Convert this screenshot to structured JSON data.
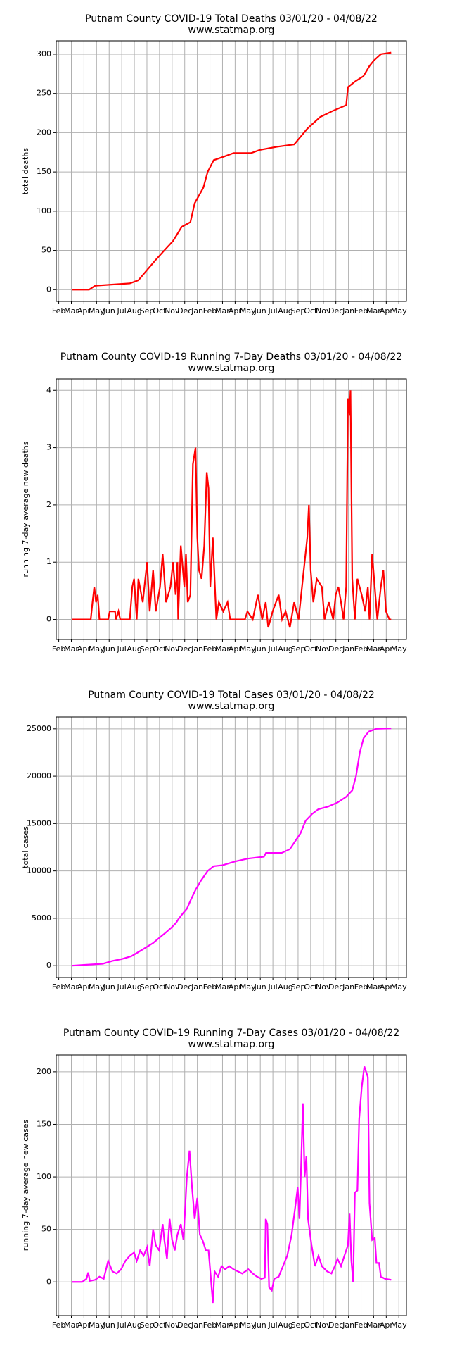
{
  "chart_data": [
    {
      "type": "line",
      "title": "Putnam County COVID-19 Total Deaths 03/01/20 - 04/08/22",
      "subtitle": "www.statmap.org",
      "ylabel": "total deaths",
      "color": "#ff0000",
      "grid": true,
      "xlim": [
        -0.2,
        27.6
      ],
      "xticks": [
        {
          "value": 0,
          "label": "Feb"
        },
        {
          "value": 1,
          "label": "Mar"
        },
        {
          "value": 2,
          "label": "Apr"
        },
        {
          "value": 3,
          "label": "May"
        },
        {
          "value": 4,
          "label": "Jun"
        },
        {
          "value": 5,
          "label": "Jul"
        },
        {
          "value": 6,
          "label": "Aug"
        },
        {
          "value": 7,
          "label": "Sep"
        },
        {
          "value": 8,
          "label": "Oct"
        },
        {
          "value": 9,
          "label": "Nov"
        },
        {
          "value": 10,
          "label": "Dec"
        },
        {
          "value": 11,
          "label": "Jan"
        },
        {
          "value": 12,
          "label": "Feb"
        },
        {
          "value": 13,
          "label": "Mar"
        },
        {
          "value": 14,
          "label": "Apr"
        },
        {
          "value": 15,
          "label": "May"
        },
        {
          "value": 16,
          "label": "Jun"
        },
        {
          "value": 17,
          "label": "Jul"
        },
        {
          "value": 18,
          "label": "Aug"
        },
        {
          "value": 19,
          "label": "Sep"
        },
        {
          "value": 20,
          "label": "Oct"
        },
        {
          "value": 21,
          "label": "Nov"
        },
        {
          "value": 22,
          "label": "Dec"
        },
        {
          "value": 23,
          "label": "Jan"
        },
        {
          "value": 24,
          "label": "Feb"
        },
        {
          "value": 25,
          "label": "Mar"
        },
        {
          "value": 26,
          "label": "Apr"
        },
        {
          "value": 27,
          "label": "May"
        }
      ],
      "ylim": [
        -15,
        317
      ],
      "yticks": [
        0,
        50,
        100,
        150,
        200,
        250,
        300
      ],
      "x": [
        1.03,
        2.41,
        2.89,
        5.64,
        6.32,
        7.01,
        7.7,
        8.38,
        9.07,
        9.76,
        10.45,
        10.79,
        11.48,
        11.82,
        12.3,
        13.2,
        13.88,
        15.26,
        15.95,
        17.32,
        18.69,
        19.73,
        20.76,
        21.79,
        22.82,
        22.96,
        23.51,
        24.19,
        24.67,
        25.02,
        25.57,
        26.39
      ],
      "values": [
        0,
        0,
        5,
        8,
        12,
        25,
        38,
        50,
        62,
        80,
        86,
        110,
        130,
        150,
        165,
        170,
        174,
        174,
        178,
        182,
        185,
        205,
        220,
        228,
        235,
        258,
        265,
        272,
        285,
        292,
        300,
        302
      ]
    },
    {
      "type": "line",
      "title": "Putnam County COVID-19 Running 7-Day Deaths 03/01/20 - 04/08/22",
      "subtitle": "www.statmap.org",
      "ylabel": "running 7-day average new deaths",
      "color": "#ff0000",
      "grid": true,
      "xlim": [
        -0.2,
        27.6
      ],
      "xticks": [
        {
          "value": 0,
          "label": "Feb"
        },
        {
          "value": 1,
          "label": "Mar"
        },
        {
          "value": 2,
          "label": "Apr"
        },
        {
          "value": 3,
          "label": "May"
        },
        {
          "value": 4,
          "label": "Jun"
        },
        {
          "value": 5,
          "label": "Jul"
        },
        {
          "value": 6,
          "label": "Aug"
        },
        {
          "value": 7,
          "label": "Sep"
        },
        {
          "value": 8,
          "label": "Oct"
        },
        {
          "value": 9,
          "label": "Nov"
        },
        {
          "value": 10,
          "label": "Dec"
        },
        {
          "value": 11,
          "label": "Jan"
        },
        {
          "value": 12,
          "label": "Feb"
        },
        {
          "value": 13,
          "label": "Mar"
        },
        {
          "value": 14,
          "label": "Apr"
        },
        {
          "value": 15,
          "label": "May"
        },
        {
          "value": 16,
          "label": "Jun"
        },
        {
          "value": 17,
          "label": "Jul"
        },
        {
          "value": 18,
          "label": "Aug"
        },
        {
          "value": 19,
          "label": "Sep"
        },
        {
          "value": 20,
          "label": "Oct"
        },
        {
          "value": 21,
          "label": "Nov"
        },
        {
          "value": 22,
          "label": "Dec"
        },
        {
          "value": 23,
          "label": "Jan"
        },
        {
          "value": 24,
          "label": "Feb"
        },
        {
          "value": 25,
          "label": "Mar"
        },
        {
          "value": 26,
          "label": "Apr"
        },
        {
          "value": 27,
          "label": "May"
        }
      ],
      "ylim": [
        -0.35,
        4.2
      ],
      "yticks": [
        0,
        1,
        2,
        3,
        4
      ],
      "x": [
        1.03,
        2.54,
        2.68,
        2.82,
        2.96,
        3.09,
        3.23,
        3.92,
        4.05,
        4.47,
        4.54,
        4.74,
        4.88,
        5.64,
        5.84,
        5.98,
        6.19,
        6.32,
        6.67,
        7.01,
        7.22,
        7.49,
        7.7,
        8.04,
        8.25,
        8.52,
        8.87,
        9.07,
        9.28,
        9.42,
        9.48,
        9.69,
        9.97,
        10.1,
        10.24,
        10.45,
        10.65,
        10.86,
        11.0,
        11.13,
        11.34,
        11.55,
        11.75,
        11.89,
        12.03,
        12.23,
        12.51,
        12.71,
        13.06,
        13.4,
        13.61,
        14.78,
        14.98,
        15.4,
        15.81,
        16.15,
        16.43,
        16.63,
        16.98,
        17.46,
        17.73,
        18.01,
        18.35,
        18.69,
        19.04,
        19.38,
        19.73,
        19.86,
        20.0,
        20.21,
        20.48,
        20.89,
        21.1,
        21.44,
        21.79,
        21.99,
        22.2,
        22.41,
        22.61,
        22.82,
        22.96,
        23.09,
        23.16,
        23.3,
        23.51,
        23.71,
        24.05,
        24.33,
        24.54,
        24.67,
        24.88,
        25.29,
        25.57,
        25.77,
        25.98,
        26.25,
        26.39
      ],
      "values": [
        0,
        0,
        0.3,
        0.57,
        0.3,
        0.43,
        0,
        0,
        0.14,
        0.14,
        0,
        0.14,
        0,
        0,
        0.57,
        0.71,
        0,
        0.71,
        0.3,
        1.0,
        0.14,
        0.86,
        0.14,
        0.57,
        1.14,
        0.3,
        0.57,
        1.0,
        0.43,
        1.0,
        0,
        1.29,
        0.57,
        1.14,
        0.3,
        0.43,
        2.71,
        3.0,
        1.43,
        0.86,
        0.71,
        1.29,
        2.57,
        2.29,
        0.57,
        1.43,
        0,
        0.3,
        0.14,
        0.3,
        0,
        0,
        0.14,
        0,
        0.43,
        0,
        0.3,
        -0.14,
        0.14,
        0.43,
        0,
        0.14,
        -0.14,
        0.3,
        0,
        0.71,
        1.43,
        2.0,
        0.86,
        0.3,
        0.71,
        0.57,
        0,
        0.3,
        0,
        0.43,
        0.57,
        0.3,
        0,
        0.57,
        3.86,
        3.57,
        4.0,
        0.71,
        0,
        0.71,
        0.43,
        0.14,
        0.57,
        0,
        1.14,
        0,
        0.57,
        0.86,
        0.14,
        0,
        0
      ]
    },
    {
      "type": "line",
      "title": "Putnam County COVID-19 Total Cases 03/01/20 - 04/08/22",
      "subtitle": "www.statmap.org",
      "ylabel": "total cases",
      "color": "#ff00ff",
      "grid": true,
      "xlim": [
        -0.2,
        27.6
      ],
      "xticks": [
        {
          "value": 0,
          "label": "Feb"
        },
        {
          "value": 1,
          "label": "Mar"
        },
        {
          "value": 2,
          "label": "Apr"
        },
        {
          "value": 3,
          "label": "May"
        },
        {
          "value": 4,
          "label": "Jun"
        },
        {
          "value": 5,
          "label": "Jul"
        },
        {
          "value": 6,
          "label": "Aug"
        },
        {
          "value": 7,
          "label": "Sep"
        },
        {
          "value": 8,
          "label": "Oct"
        },
        {
          "value": 9,
          "label": "Nov"
        },
        {
          "value": 10,
          "label": "Dec"
        },
        {
          "value": 11,
          "label": "Jan"
        },
        {
          "value": 12,
          "label": "Feb"
        },
        {
          "value": 13,
          "label": "Mar"
        },
        {
          "value": 14,
          "label": "Apr"
        },
        {
          "value": 15,
          "label": "May"
        },
        {
          "value": 16,
          "label": "Jun"
        },
        {
          "value": 17,
          "label": "Jul"
        },
        {
          "value": 18,
          "label": "Aug"
        },
        {
          "value": 19,
          "label": "Sep"
        },
        {
          "value": 20,
          "label": "Oct"
        },
        {
          "value": 21,
          "label": "Nov"
        },
        {
          "value": 22,
          "label": "Dec"
        },
        {
          "value": 23,
          "label": "Jan"
        },
        {
          "value": 24,
          "label": "Feb"
        },
        {
          "value": 25,
          "label": "Mar"
        },
        {
          "value": 26,
          "label": "Apr"
        },
        {
          "value": 27,
          "label": "May"
        }
      ],
      "ylim": [
        -1250,
        26250
      ],
      "yticks": [
        0,
        5000,
        10000,
        15000,
        20000,
        25000
      ],
      "x": [
        1.03,
        2.2,
        3.5,
        4.26,
        5.0,
        5.77,
        6.4,
        7.01,
        7.5,
        8.04,
        8.5,
        8.93,
        9.3,
        9.55,
        9.9,
        10.17,
        10.5,
        10.86,
        11.3,
        11.82,
        12.3,
        13.0,
        14.0,
        15.0,
        16.29,
        16.45,
        17.7,
        18.35,
        18.8,
        19.2,
        19.6,
        20.1,
        20.6,
        21.4,
        22.1,
        22.8,
        23.3,
        23.6,
        23.9,
        24.2,
        24.6,
        25.2,
        26.39
      ],
      "values": [
        0,
        100,
        200,
        500,
        700,
        1000,
        1500,
        2000,
        2400,
        3000,
        3500,
        4000,
        4500,
        5000,
        5600,
        6000,
        7000,
        8000,
        9000,
        10000,
        10500,
        10600,
        11000,
        11300,
        11500,
        11900,
        11900,
        12300,
        13200,
        14000,
        15300,
        16000,
        16500,
        16800,
        17200,
        17800,
        18500,
        20000,
        22500,
        24000,
        24700,
        25000,
        25050
      ]
    },
    {
      "type": "line",
      "title": "Putnam County COVID-19 Running 7-Day Cases 03/01/20 - 04/08/22",
      "subtitle": "www.statmap.org",
      "ylabel": "running 7-day average new cases",
      "color": "#ff00ff",
      "grid": true,
      "xlim": [
        -0.2,
        27.6
      ],
      "xticks": [
        {
          "value": 0,
          "label": "Feb"
        },
        {
          "value": 1,
          "label": "Mar"
        },
        {
          "value": 2,
          "label": "Apr"
        },
        {
          "value": 3,
          "label": "May"
        },
        {
          "value": 4,
          "label": "Jun"
        },
        {
          "value": 5,
          "label": "Jul"
        },
        {
          "value": 6,
          "label": "Aug"
        },
        {
          "value": 7,
          "label": "Sep"
        },
        {
          "value": 8,
          "label": "Oct"
        },
        {
          "value": 9,
          "label": "Nov"
        },
        {
          "value": 10,
          "label": "Dec"
        },
        {
          "value": 11,
          "label": "Jan"
        },
        {
          "value": 12,
          "label": "Feb"
        },
        {
          "value": 13,
          "label": "Mar"
        },
        {
          "value": 14,
          "label": "Apr"
        },
        {
          "value": 15,
          "label": "May"
        },
        {
          "value": 16,
          "label": "Jun"
        },
        {
          "value": 17,
          "label": "Jul"
        },
        {
          "value": 18,
          "label": "Aug"
        },
        {
          "value": 19,
          "label": "Sep"
        },
        {
          "value": 20,
          "label": "Oct"
        },
        {
          "value": 21,
          "label": "Nov"
        },
        {
          "value": 22,
          "label": "Dec"
        },
        {
          "value": 23,
          "label": "Jan"
        },
        {
          "value": 24,
          "label": "Feb"
        },
        {
          "value": 25,
          "label": "Mar"
        },
        {
          "value": 26,
          "label": "Apr"
        },
        {
          "value": 27,
          "label": "May"
        }
      ],
      "ylim": [
        -32,
        216
      ],
      "yticks": [
        0,
        50,
        100,
        150,
        200
      ],
      "x": [
        1.03,
        1.86,
        2.2,
        2.34,
        2.47,
        2.89,
        3.23,
        3.57,
        3.92,
        4.26,
        4.6,
        4.95,
        5.29,
        5.64,
        5.98,
        6.19,
        6.46,
        6.74,
        7.01,
        7.22,
        7.49,
        7.7,
        7.97,
        8.25,
        8.38,
        8.59,
        8.8,
        9.0,
        9.21,
        9.42,
        9.69,
        9.9,
        10.17,
        10.38,
        10.58,
        10.79,
        11.0,
        11.2,
        11.41,
        11.68,
        11.89,
        12.1,
        12.23,
        12.37,
        12.65,
        12.92,
        13.2,
        13.54,
        13.88,
        14.23,
        14.57,
        15.05,
        15.4,
        15.74,
        16.08,
        16.36,
        16.43,
        16.56,
        16.7,
        16.91,
        17.11,
        17.46,
        17.8,
        18.14,
        18.49,
        18.76,
        18.97,
        19.11,
        19.24,
        19.38,
        19.52,
        19.66,
        19.79,
        20.07,
        20.34,
        20.62,
        20.89,
        21.31,
        21.65,
        21.92,
        22.13,
        22.41,
        22.68,
        22.96,
        23.09,
        23.23,
        23.37,
        23.51,
        23.71,
        23.85,
        24.05,
        24.26,
        24.4,
        24.54,
        24.67,
        24.88,
        25.09,
        25.22,
        25.43,
        25.57,
        25.91,
        26.39
      ],
      "values": [
        0,
        0,
        3,
        9,
        1,
        2,
        5,
        3,
        20,
        10,
        8,
        12,
        20,
        25,
        28,
        20,
        30,
        25,
        33,
        15,
        50,
        35,
        30,
        55,
        40,
        22,
        60,
        40,
        30,
        45,
        55,
        40,
        100,
        125,
        90,
        60,
        80,
        45,
        40,
        30,
        30,
        0,
        -20,
        10,
        5,
        15,
        12,
        15,
        12,
        10,
        8,
        12,
        8,
        5,
        3,
        4,
        60,
        55,
        -5,
        -8,
        3,
        5,
        15,
        25,
        45,
        70,
        90,
        60,
        110,
        170,
        100,
        120,
        60,
        35,
        15,
        25,
        15,
        10,
        8,
        15,
        22,
        15,
        25,
        35,
        65,
        20,
        0,
        85,
        87,
        155,
        185,
        205,
        200,
        195,
        75,
        40,
        42,
        18,
        18,
        5,
        3,
        2
      ]
    }
  ]
}
